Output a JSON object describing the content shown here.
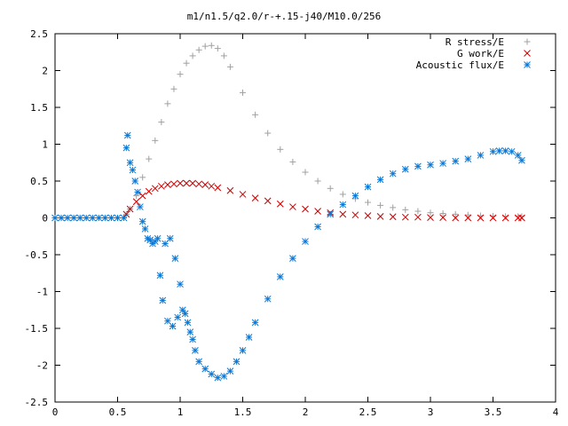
{
  "chart_data": {
    "type": "scatter",
    "title": "m1/n1.5/q2.0/r-+.15-j40/M10.0/256",
    "xlabel": "",
    "ylabel": "",
    "xlim": [
      0,
      4
    ],
    "ylim": [
      -2.5,
      2.5
    ],
    "xticks": [
      0,
      0.5,
      1,
      1.5,
      2,
      2.5,
      3,
      3.5,
      4
    ],
    "xtick_labels": [
      "0",
      "0.5",
      "1",
      "1.5",
      "2",
      "2.5",
      "3",
      "3.5",
      "4"
    ],
    "yticks": [
      2.5,
      2,
      1.5,
      1,
      0.5,
      0,
      -0.5,
      -1,
      -1.5,
      -2,
      -2.5
    ],
    "ytick_labels": [
      "2.5",
      "2",
      "1.5",
      "1",
      "0.5",
      "0",
      "-0.5",
      "-1",
      "-1.5",
      "-2",
      "-2.5"
    ],
    "grid": false,
    "legend_position": "top-right",
    "series": [
      {
        "name": "R stress/E",
        "marker": "plus",
        "color": "#a0a0a0",
        "x": [
          0.57,
          0.6,
          0.65,
          0.7,
          0.75,
          0.8,
          0.85,
          0.9,
          0.95,
          1.0,
          1.05,
          1.1,
          1.15,
          1.2,
          1.25,
          1.3,
          1.35,
          1.4,
          1.5,
          1.6,
          1.7,
          1.8,
          1.9,
          2.0,
          2.1,
          2.2,
          2.3,
          2.4,
          2.5,
          2.6,
          2.7,
          2.8,
          2.9,
          3.0,
          3.1,
          3.2,
          3.3,
          3.4,
          3.5,
          3.6,
          3.7,
          3.73
        ],
        "y": [
          0.05,
          0.12,
          0.3,
          0.55,
          0.8,
          1.05,
          1.3,
          1.55,
          1.75,
          1.95,
          2.1,
          2.2,
          2.28,
          2.33,
          2.34,
          2.3,
          2.2,
          2.05,
          1.7,
          1.4,
          1.15,
          0.93,
          0.76,
          0.62,
          0.5,
          0.4,
          0.32,
          0.26,
          0.21,
          0.17,
          0.14,
          0.11,
          0.09,
          0.07,
          0.06,
          0.05,
          0.04,
          0.03,
          0.025,
          0.02,
          0.02,
          0.02
        ]
      },
      {
        "name": "G work/E",
        "marker": "cross",
        "color": "#c80000",
        "x": [
          0.57,
          0.6,
          0.65,
          0.7,
          0.75,
          0.8,
          0.85,
          0.9,
          0.95,
          1.0,
          1.05,
          1.1,
          1.15,
          1.2,
          1.25,
          1.3,
          1.4,
          1.5,
          1.6,
          1.7,
          1.8,
          1.9,
          2.0,
          2.1,
          2.2,
          2.3,
          2.4,
          2.5,
          2.6,
          2.7,
          2.8,
          2.9,
          3.0,
          3.1,
          3.2,
          3.3,
          3.4,
          3.5,
          3.6,
          3.7,
          3.73
        ],
        "y": [
          0.05,
          0.12,
          0.22,
          0.3,
          0.36,
          0.4,
          0.43,
          0.45,
          0.46,
          0.47,
          0.47,
          0.47,
          0.46,
          0.45,
          0.43,
          0.41,
          0.37,
          0.32,
          0.27,
          0.23,
          0.19,
          0.15,
          0.12,
          0.09,
          0.07,
          0.05,
          0.04,
          0.03,
          0.02,
          0.015,
          0.01,
          0.01,
          0.005,
          0.005,
          0.0,
          0.0,
          0.0,
          0.0,
          0.0,
          0.0,
          0.0
        ]
      },
      {
        "name": "Acoustic flux/E",
        "marker": "star",
        "color": "#0a78d7",
        "x": [
          0.0,
          0.05,
          0.1,
          0.15,
          0.2,
          0.25,
          0.3,
          0.35,
          0.4,
          0.45,
          0.5,
          0.55,
          0.57,
          0.58,
          0.6,
          0.62,
          0.64,
          0.66,
          0.68,
          0.7,
          0.72,
          0.74,
          0.76,
          0.78,
          0.8,
          0.82,
          0.84,
          0.86,
          0.88,
          0.9,
          0.92,
          0.94,
          0.96,
          0.98,
          1.0,
          1.02,
          1.04,
          1.06,
          1.08,
          1.1,
          1.12,
          1.15,
          1.2,
          1.25,
          1.3,
          1.35,
          1.4,
          1.45,
          1.5,
          1.55,
          1.6,
          1.7,
          1.8,
          1.9,
          2.0,
          2.1,
          2.2,
          2.3,
          2.4,
          2.5,
          2.6,
          2.7,
          2.8,
          2.9,
          3.0,
          3.1,
          3.2,
          3.3,
          3.4,
          3.5,
          3.55,
          3.6,
          3.65,
          3.7,
          3.73
        ],
        "y": [
          0.0,
          0.0,
          0.0,
          0.0,
          0.0,
          0.0,
          0.0,
          0.0,
          0.0,
          0.0,
          0.0,
          0.0,
          0.95,
          1.12,
          0.75,
          0.65,
          0.5,
          0.35,
          0.15,
          -0.05,
          -0.15,
          -0.28,
          -0.3,
          -0.35,
          -0.32,
          -0.28,
          -0.78,
          -1.12,
          -0.35,
          -1.4,
          -0.28,
          -1.47,
          -0.55,
          -1.35,
          -0.9,
          -1.25,
          -1.3,
          -1.42,
          -1.55,
          -1.65,
          -1.8,
          -1.95,
          -2.05,
          -2.12,
          -2.17,
          -2.15,
          -2.08,
          -1.95,
          -1.8,
          -1.62,
          -1.42,
          -1.1,
          -0.8,
          -0.55,
          -0.32,
          -0.12,
          0.05,
          0.18,
          0.3,
          0.42,
          0.52,
          0.6,
          0.66,
          0.7,
          0.72,
          0.74,
          0.77,
          0.8,
          0.85,
          0.9,
          0.91,
          0.91,
          0.9,
          0.85,
          0.78
        ]
      }
    ]
  }
}
